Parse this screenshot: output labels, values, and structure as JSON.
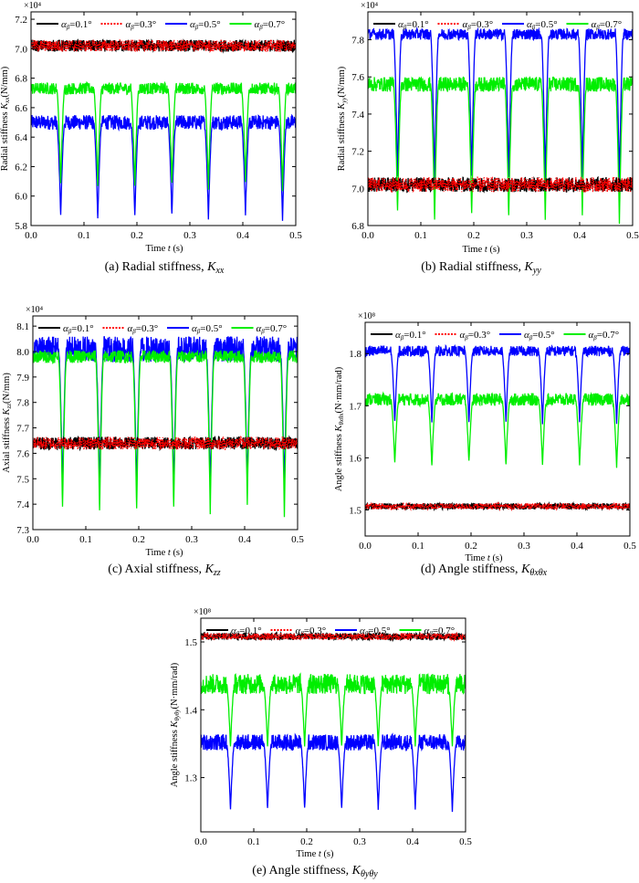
{
  "legend": [
    {
      "label": "α",
      "sub": "β",
      "value": "=0.1°",
      "color": "#000000",
      "dash": "solid"
    },
    {
      "label": "α",
      "sub": "β",
      "value": "=0.3°",
      "color": "#ff0000",
      "dash": "dotted"
    },
    {
      "label": "α",
      "sub": "β",
      "value": "=0.5°",
      "color": "#0000ff",
      "dash": "solid"
    },
    {
      "label": "α",
      "sub": "β",
      "value": "=0.7°",
      "color": "#00ee00",
      "dash": "solid"
    }
  ],
  "chart_data": [
    {
      "id": "a",
      "type": "line",
      "caption": "(a) Radial stiffness, K",
      "caption_sub": "xx",
      "xlabel": "Time t (s)",
      "ylabel": "Radial stiffness K",
      "ylabel_sub": "xx",
      "ylabel_unit": "(N/mm)",
      "multiplier": "×10⁴",
      "xlim": [
        0,
        0.5
      ],
      "ylim": [
        5.8,
        7.25
      ],
      "xticks": [
        "0.0",
        "0.1",
        "0.2",
        "0.3",
        "0.4",
        "0.5"
      ],
      "yticks": [
        5.8,
        6.0,
        6.2,
        6.4,
        6.6,
        6.8,
        7.0,
        7.2
      ],
      "ytick_labels": [
        "5.8",
        "6.0",
        "6.2",
        "6.4",
        "6.6",
        "6.8",
        "7.0",
        "7.2"
      ],
      "dip_times": [
        0.056,
        0.126,
        0.196,
        0.266,
        0.335,
        0.405,
        0.475
      ],
      "series": [
        {
          "name": "α_β=0.1°",
          "plateau": 7.02,
          "noise": 0.04,
          "dip_min": null
        },
        {
          "name": "α_β=0.3°",
          "plateau": 7.02,
          "noise": 0.04,
          "dip_min": null
        },
        {
          "name": "α_β=0.5°",
          "plateau": 6.5,
          "noise": 0.05,
          "dip_min": [
            5.86,
            5.84,
            5.85,
            5.86,
            5.84,
            5.87,
            5.83
          ]
        },
        {
          "name": "α_β=0.7°",
          "plateau": 6.73,
          "noise": 0.04,
          "dip_min": [
            6.07,
            6.05,
            6.05,
            6.07,
            6.04,
            6.09,
            6.03
          ]
        }
      ]
    },
    {
      "id": "b",
      "type": "line",
      "caption": "(b) Radial stiffness, K",
      "caption_sub": "yy",
      "xlabel": "Time t (s)",
      "ylabel": "Radial stiffness K",
      "ylabel_sub": "yy",
      "ylabel_unit": "(N/mm)",
      "multiplier": "×10⁴",
      "xlim": [
        0,
        0.5
      ],
      "ylim": [
        6.8,
        7.95
      ],
      "xticks": [
        "0.0",
        "0.1",
        "0.2",
        "0.3",
        "0.4",
        "0.5"
      ],
      "yticks": [
        6.8,
        7.0,
        7.2,
        7.4,
        7.6,
        7.8
      ],
      "ytick_labels": [
        "6.8",
        "7.0",
        "7.2",
        "7.4",
        "7.6",
        "7.8"
      ],
      "dip_times": [
        0.056,
        0.126,
        0.196,
        0.266,
        0.335,
        0.405,
        0.475
      ],
      "series": [
        {
          "name": "α_β=0.1°",
          "plateau": 7.02,
          "noise": 0.04,
          "dip_min": null
        },
        {
          "name": "α_β=0.3°",
          "plateau": 7.02,
          "noise": 0.04,
          "dip_min": null
        },
        {
          "name": "α_β=0.5°",
          "plateau": 7.83,
          "noise": 0.03,
          "dip_min": [
            7.05,
            7.02,
            7.05,
            7.04,
            7.03,
            7.06,
            7.02
          ]
        },
        {
          "name": "α_β=0.7°",
          "plateau": 7.56,
          "noise": 0.04,
          "dip_min": [
            6.87,
            6.82,
            6.85,
            6.84,
            6.83,
            6.85,
            6.81
          ]
        }
      ]
    },
    {
      "id": "c",
      "type": "line",
      "caption": "(c) Axial stiffness, K",
      "caption_sub": "zz",
      "xlabel": "Time t (s)",
      "ylabel": "Axial stiffness K",
      "ylabel_sub": "zz",
      "ylabel_unit": "(N/mm)",
      "multiplier": "×10⁴",
      "xlim": [
        0,
        0.5
      ],
      "ylim": [
        7.3,
        8.14
      ],
      "xticks": [
        "0.0",
        "0.1",
        "0.2",
        "0.3",
        "0.4",
        "0.5"
      ],
      "yticks": [
        7.3,
        7.4,
        7.5,
        7.6,
        7.7,
        7.8,
        7.9,
        8.0,
        8.1
      ],
      "ytick_labels": [
        "7.3",
        "7.4",
        "7.5",
        "7.6",
        "7.7",
        "7.8",
        "7.9",
        "8.0",
        "8.1"
      ],
      "dip_times": [
        0.056,
        0.126,
        0.196,
        0.266,
        0.335,
        0.405,
        0.475
      ],
      "series": [
        {
          "name": "α_β=0.1°",
          "plateau": 7.64,
          "noise": 0.025,
          "dip_min": null
        },
        {
          "name": "α_β=0.3°",
          "plateau": 7.64,
          "noise": 0.025,
          "dip_min": null
        },
        {
          "name": "α_β=0.5°",
          "plateau": 8.01,
          "noise": 0.05,
          "dip_min": [
            7.45,
            7.45,
            7.45,
            7.45,
            7.45,
            7.46,
            7.45
          ]
        },
        {
          "name": "α_β=0.7°",
          "plateau": 7.98,
          "noise": 0.025,
          "dip_min": [
            7.38,
            7.36,
            7.37,
            7.38,
            7.36,
            7.4,
            7.35
          ]
        }
      ]
    },
    {
      "id": "d",
      "type": "line",
      "caption": "(d) Angle stiffness, K",
      "caption_sub": "θxθx",
      "xlabel": "Time t (s)",
      "ylabel": "Angle stiffness K",
      "ylabel_sub": "θxθx",
      "ylabel_unit": "(N·mm/rad)",
      "multiplier": "×10⁸",
      "xlim": [
        0,
        0.5
      ],
      "ylim": [
        1.45,
        1.86
      ],
      "xticks": [
        "0.0",
        "0.1",
        "0.2",
        "0.3",
        "0.4",
        "0.5"
      ],
      "yticks": [
        1.5,
        1.6,
        1.7,
        1.8
      ],
      "ytick_labels": [
        "1.5",
        "1.6",
        "1.7",
        "1.8"
      ],
      "dip_times": [
        0.056,
        0.126,
        0.196,
        0.266,
        0.335,
        0.405,
        0.475
      ],
      "series": [
        {
          "name": "α_β=0.1°",
          "plateau": 1.507,
          "noise": 0.006,
          "dip_min": null
        },
        {
          "name": "α_β=0.3°",
          "plateau": 1.507,
          "noise": 0.006,
          "dip_min": null
        },
        {
          "name": "α_β=0.5°",
          "plateau": 1.805,
          "noise": 0.01,
          "dip_min": [
            1.667,
            1.665,
            1.665,
            1.667,
            1.664,
            1.668,
            1.665
          ]
        },
        {
          "name": "α_β=0.7°",
          "plateau": 1.712,
          "noise": 0.012,
          "dip_min": [
            1.588,
            1.582,
            1.59,
            1.584,
            1.585,
            1.585,
            1.582
          ]
        }
      ]
    },
    {
      "id": "e",
      "type": "line",
      "caption": "(e) Angle stiffness, K",
      "caption_sub": "θyθy",
      "xlabel": "Time t (s)",
      "ylabel": "Angle stiffness K",
      "ylabel_sub": "θyθy",
      "ylabel_unit": "(N·mm/rad)",
      "multiplier": "×10⁸",
      "xlim": [
        0,
        0.5
      ],
      "ylim": [
        1.22,
        1.535
      ],
      "xticks": [
        "0.0",
        "0.1",
        "0.2",
        "0.3",
        "0.4",
        "0.5"
      ],
      "yticks": [
        1.3,
        1.4,
        1.5
      ],
      "ytick_labels": [
        "1.3",
        "1.4",
        "1.5"
      ],
      "dip_times": [
        0.056,
        0.126,
        0.196,
        0.266,
        0.335,
        0.405,
        0.475
      ],
      "series": [
        {
          "name": "α_β=0.1°",
          "plateau": 1.508,
          "noise": 0.005,
          "dip_min": null
        },
        {
          "name": "α_β=0.3°",
          "plateau": 1.508,
          "noise": 0.005,
          "dip_min": null
        },
        {
          "name": "α_β=0.5°",
          "plateau": 1.352,
          "noise": 0.012,
          "dip_min": [
            1.252,
            1.252,
            1.252,
            1.252,
            1.252,
            1.253,
            1.251
          ]
        },
        {
          "name": "α_β=0.7°",
          "plateau": 1.438,
          "noise": 0.015,
          "dip_min": [
            1.345,
            1.345,
            1.345,
            1.345,
            1.345,
            1.346,
            1.344
          ]
        }
      ]
    }
  ]
}
